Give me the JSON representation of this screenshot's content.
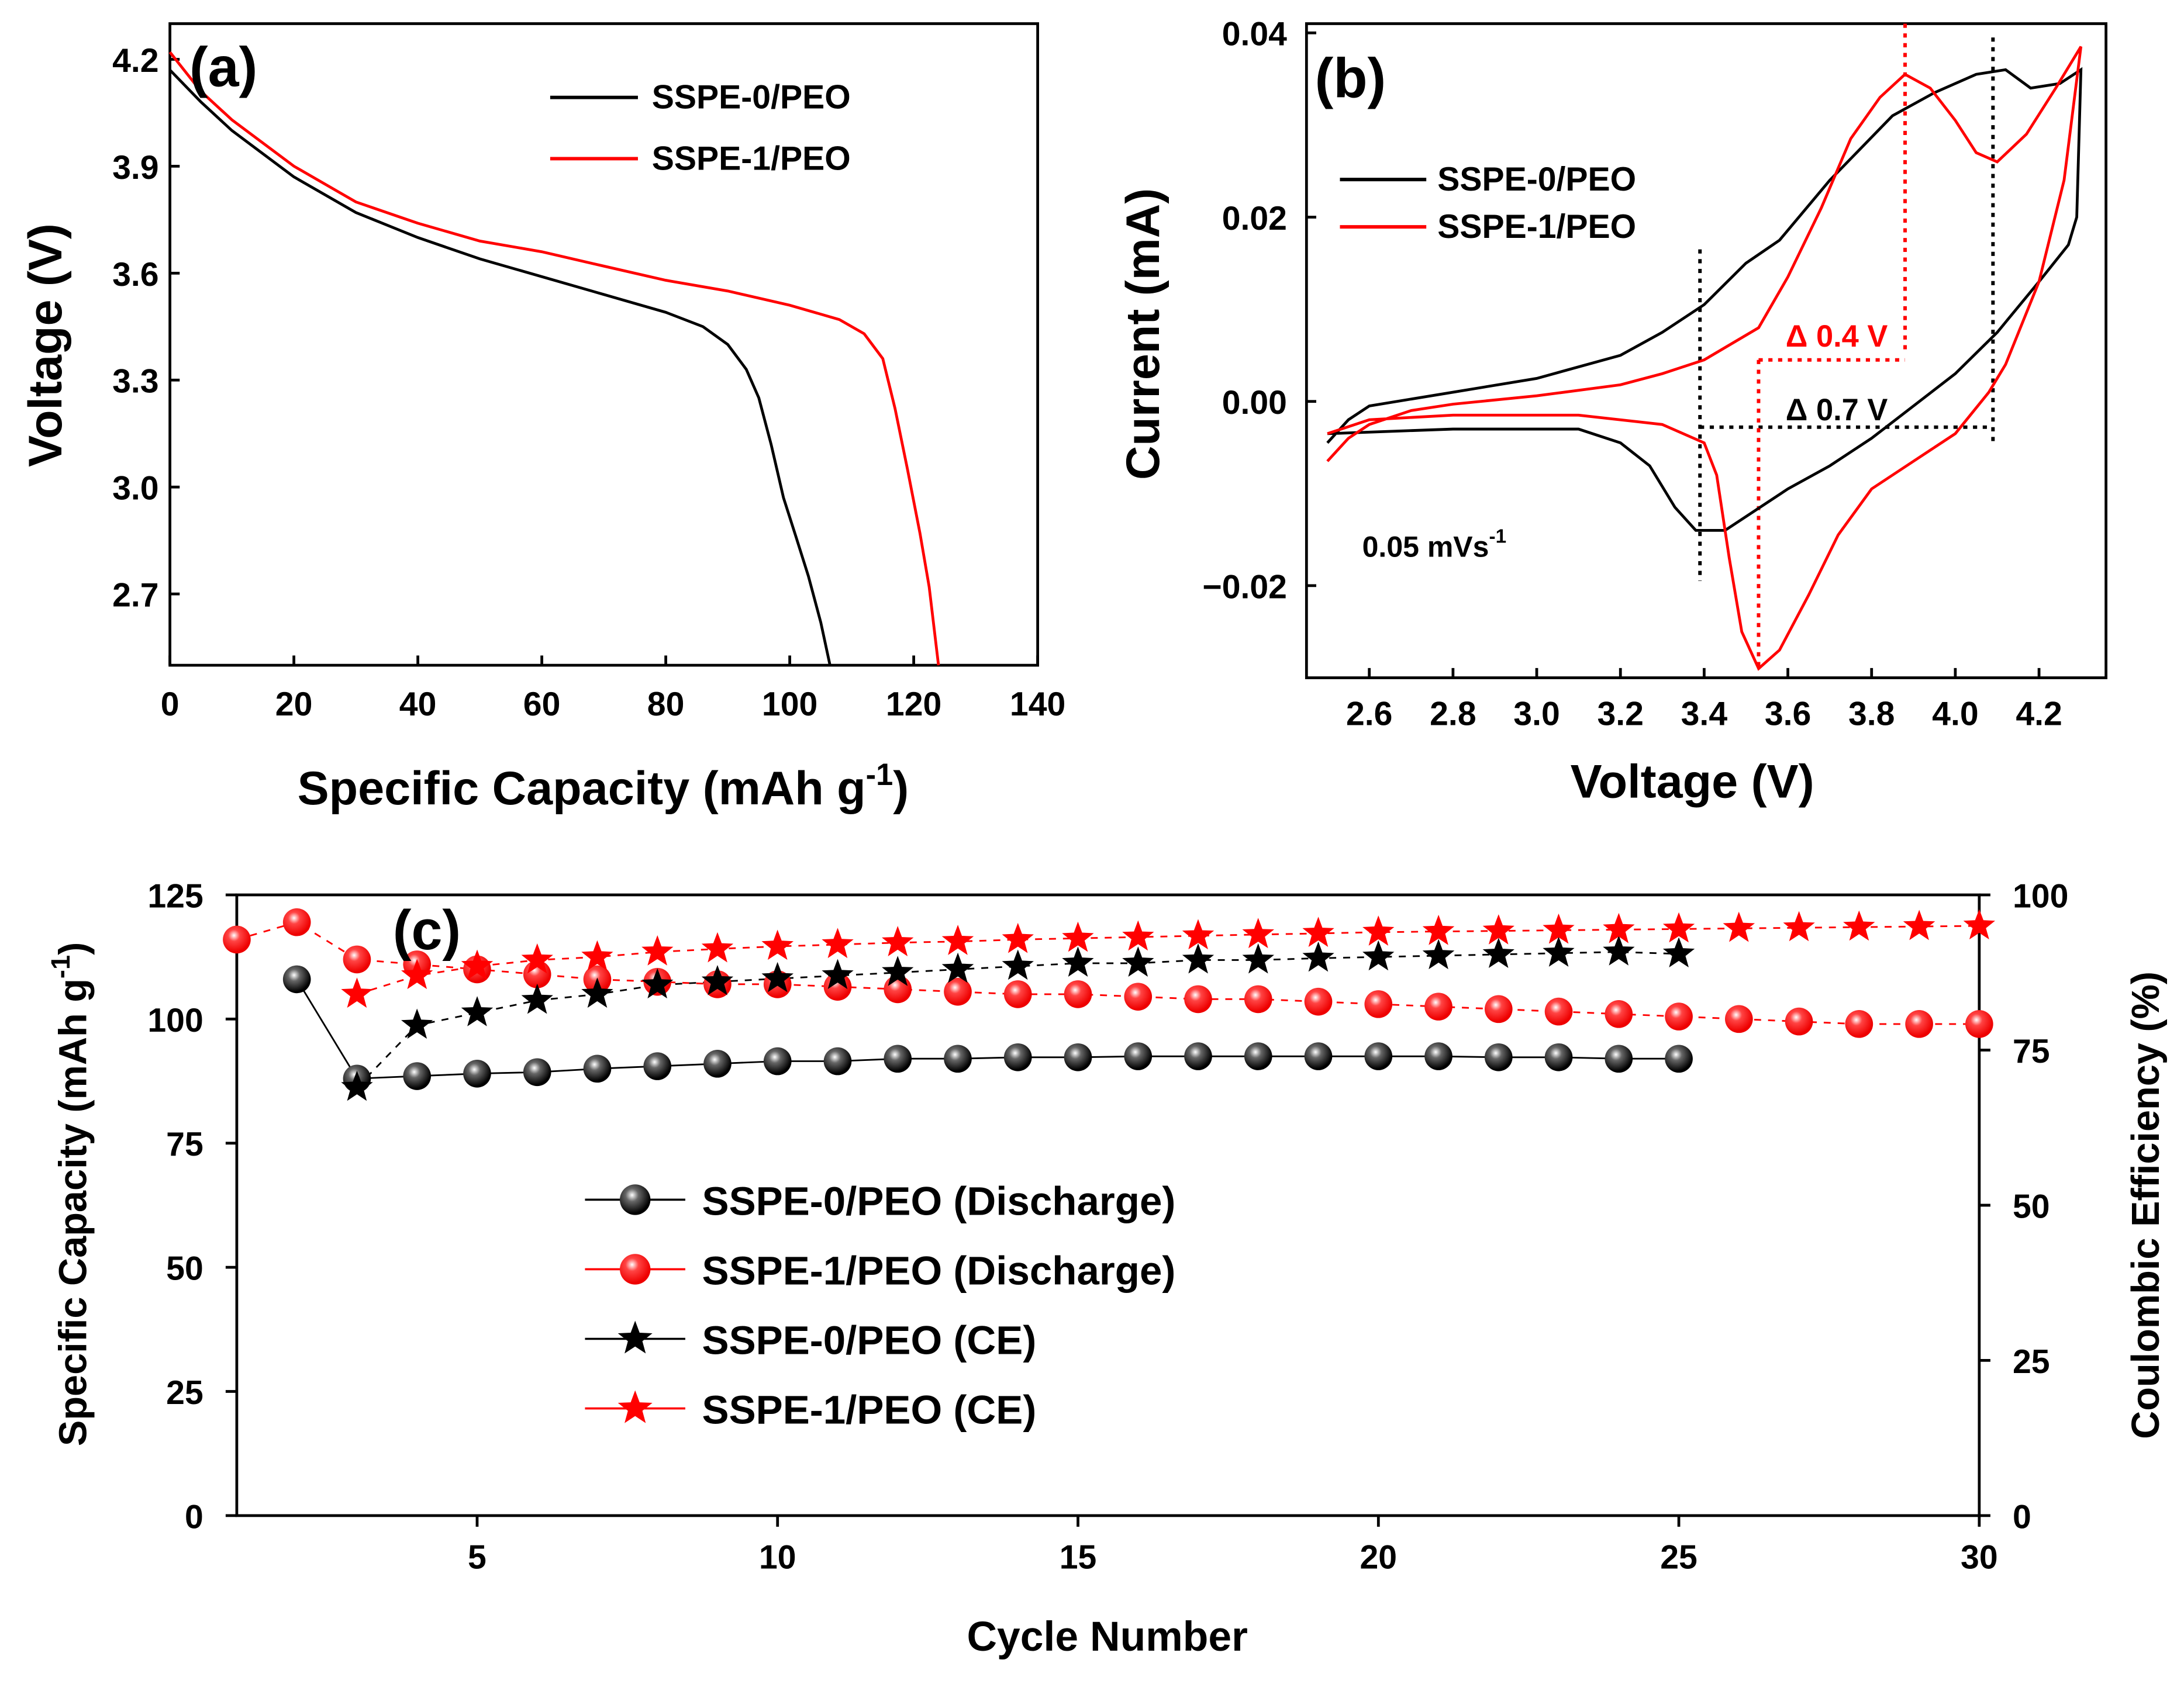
{
  "colors": {
    "black": "#000000",
    "red": "#ff0000"
  },
  "chart_data": [
    {
      "type": "line",
      "panel_label": "(a)",
      "xlabel": "Specific Capacity (mAh g",
      "xlabel_sup": "-1",
      "xlabel_end": ")",
      "ylabel": "Voltage (V)",
      "xlim": [
        0,
        140
      ],
      "ylim": [
        2.5,
        4.3
      ],
      "xticks": [
        0,
        20,
        40,
        60,
        80,
        100,
        120,
        140
      ],
      "yticks": [
        2.7,
        3.0,
        3.3,
        3.6,
        3.9,
        4.2
      ],
      "legend_position": "top-right",
      "series": [
        {
          "name": "SSPE-0/PEO",
          "color": "#000000",
          "points": [
            [
              0,
              4.17
            ],
            [
              5,
              4.08
            ],
            [
              10,
              4.0
            ],
            [
              20,
              3.87
            ],
            [
              30,
              3.77
            ],
            [
              40,
              3.7
            ],
            [
              50,
              3.64
            ],
            [
              60,
              3.59
            ],
            [
              70,
              3.54
            ],
            [
              80,
              3.49
            ],
            [
              86,
              3.45
            ],
            [
              90,
              3.4
            ],
            [
              93,
              3.33
            ],
            [
              95,
              3.25
            ],
            [
              97,
              3.12
            ],
            [
              99,
              2.97
            ],
            [
              101,
              2.86
            ],
            [
              103,
              2.75
            ],
            [
              105,
              2.62
            ],
            [
              106.5,
              2.5
            ]
          ]
        },
        {
          "name": "SSPE-1/PEO",
          "color": "#ff0000",
          "points": [
            [
              0,
              4.22
            ],
            [
              5,
              4.11
            ],
            [
              10,
              4.03
            ],
            [
              20,
              3.9
            ],
            [
              30,
              3.8
            ],
            [
              40,
              3.74
            ],
            [
              50,
              3.69
            ],
            [
              60,
              3.66
            ],
            [
              70,
              3.62
            ],
            [
              80,
              3.58
            ],
            [
              90,
              3.55
            ],
            [
              100,
              3.51
            ],
            [
              108,
              3.47
            ],
            [
              112,
              3.43
            ],
            [
              115,
              3.36
            ],
            [
              117,
              3.22
            ],
            [
              119,
              3.05
            ],
            [
              121,
              2.87
            ],
            [
              122.5,
              2.72
            ],
            [
              124,
              2.5
            ]
          ]
        }
      ]
    },
    {
      "type": "line",
      "panel_label": "(b)",
      "xlabel": "Voltage (V)",
      "ylabel": "Current (mA)",
      "xlim": [
        2.45,
        4.36
      ],
      "ylim": [
        -0.03,
        0.041
      ],
      "xticks": [
        2.6,
        2.8,
        3.0,
        3.2,
        3.4,
        3.6,
        3.8,
        4.0,
        4.2
      ],
      "yticks": [
        -0.02,
        0.0,
        0.02,
        0.04
      ],
      "ytick_labels": [
        "−0.02",
        "0.00",
        "0.02",
        "0.04"
      ],
      "legend_position": "upper-left",
      "annotations": {
        "scan_rate": "0.05 mVs",
        "scan_rate_sup": "-1",
        "delta_red": "Δ 0.4 V",
        "delta_black": "Δ 0.7 V"
      },
      "series": [
        {
          "name": "SSPE-0/PEO",
          "color": "#000000",
          "points": [
            [
              2.5,
              -0.0045
            ],
            [
              2.55,
              -0.002
            ],
            [
              2.6,
              -0.0005
            ],
            [
              2.8,
              0.001
            ],
            [
              3.0,
              0.0025
            ],
            [
              3.2,
              0.005
            ],
            [
              3.3,
              0.0075
            ],
            [
              3.4,
              0.0105
            ],
            [
              3.5,
              0.015
            ],
            [
              3.58,
              0.0175
            ],
            [
              3.7,
              0.024
            ],
            [
              3.85,
              0.031
            ],
            [
              3.95,
              0.0335
            ],
            [
              4.05,
              0.0355
            ],
            [
              4.12,
              0.036
            ],
            [
              4.18,
              0.034
            ],
            [
              4.25,
              0.0345
            ],
            [
              4.3,
              0.036
            ],
            [
              4.29,
              0.02
            ],
            [
              4.27,
              0.017
            ],
            [
              4.2,
              0.013
            ],
            [
              4.1,
              0.0075
            ],
            [
              4.0,
              0.003
            ],
            [
              3.9,
              -0.0005
            ],
            [
              3.8,
              -0.004
            ],
            [
              3.7,
              -0.007
            ],
            [
              3.6,
              -0.0095
            ],
            [
              3.45,
              -0.014
            ],
            [
              3.38,
              -0.014
            ],
            [
              3.33,
              -0.0115
            ],
            [
              3.27,
              -0.007
            ],
            [
              3.2,
              -0.0045
            ],
            [
              3.1,
              -0.003
            ],
            [
              2.8,
              -0.003
            ],
            [
              2.5,
              -0.0035
            ]
          ]
        },
        {
          "name": "SSPE-1/PEO",
          "color": "#ff0000",
          "points": [
            [
              2.5,
              -0.0065
            ],
            [
              2.55,
              -0.004
            ],
            [
              2.6,
              -0.0025
            ],
            [
              2.7,
              -0.001
            ],
            [
              2.8,
              -0.0003
            ],
            [
              3.0,
              0.0006
            ],
            [
              3.2,
              0.0018
            ],
            [
              3.3,
              0.003
            ],
            [
              3.4,
              0.0045
            ],
            [
              3.53,
              0.008
            ],
            [
              3.6,
              0.0135
            ],
            [
              3.68,
              0.021
            ],
            [
              3.75,
              0.0285
            ],
            [
              3.82,
              0.033
            ],
            [
              3.88,
              0.0355
            ],
            [
              3.94,
              0.034
            ],
            [
              4.0,
              0.0305
            ],
            [
              4.05,
              0.027
            ],
            [
              4.1,
              0.026
            ],
            [
              4.17,
              0.029
            ],
            [
              4.24,
              0.034
            ],
            [
              4.3,
              0.0385
            ],
            [
              4.26,
              0.024
            ],
            [
              4.2,
              0.013
            ],
            [
              4.12,
              0.004
            ],
            [
              4.08,
              0.001
            ],
            [
              4.0,
              -0.0035
            ],
            [
              3.9,
              -0.0065
            ],
            [
              3.8,
              -0.0095
            ],
            [
              3.72,
              -0.0145
            ],
            [
              3.65,
              -0.021
            ],
            [
              3.58,
              -0.027
            ],
            [
              3.53,
              -0.029
            ],
            [
              3.49,
              -0.025
            ],
            [
              3.46,
              -0.017
            ],
            [
              3.43,
              -0.008
            ],
            [
              3.4,
              -0.0045
            ],
            [
              3.3,
              -0.0025
            ],
            [
              3.1,
              -0.0015
            ],
            [
              2.8,
              -0.0015
            ],
            [
              2.6,
              -0.002
            ],
            [
              2.5,
              -0.0035
            ]
          ]
        }
      ]
    },
    {
      "type": "scatter",
      "panel_label": "(c)",
      "xlabel": "Cycle Number",
      "ylabel": "Specific Capacity (mAh g",
      "ylabel_sup": "-1",
      "ylabel_end": ")",
      "y2label": "Coulombic Efficiency (%)",
      "xlim": [
        1,
        30
      ],
      "ylim": [
        0,
        125
      ],
      "y2lim": [
        0,
        100
      ],
      "xticks": [
        5,
        10,
        15,
        20,
        25,
        30
      ],
      "yticks": [
        0,
        25,
        50,
        75,
        100,
        125
      ],
      "y2ticks": [
        0,
        25,
        50,
        75,
        100
      ],
      "legend_position": "center-left",
      "series": [
        {
          "name": "SSPE-0/PEO (Discharge)",
          "axis": "left",
          "marker": "sphere",
          "color": "#000000",
          "x": [
            2,
            3,
            4,
            5,
            6,
            7,
            8,
            9,
            10,
            11,
            12,
            13,
            14,
            15,
            16,
            17,
            18,
            19,
            20,
            21,
            22,
            23,
            24,
            25
          ],
          "values": [
            108,
            88,
            88.5,
            89,
            89.3,
            90,
            90.5,
            91,
            91.5,
            91.5,
            92,
            92,
            92.3,
            92.3,
            92.5,
            92.5,
            92.5,
            92.5,
            92.5,
            92.5,
            92.3,
            92.3,
            92,
            92
          ]
        },
        {
          "name": "SSPE-1/PEO (Discharge)",
          "axis": "left",
          "marker": "sphere",
          "color": "#ff0000",
          "x": [
            1,
            2,
            3,
            4,
            5,
            6,
            7,
            8,
            9,
            10,
            11,
            12,
            13,
            14,
            15,
            16,
            17,
            18,
            19,
            20,
            21,
            22,
            23,
            24,
            25,
            26,
            27,
            28,
            29,
            30
          ],
          "values": [
            116,
            119.5,
            112,
            111,
            110,
            109,
            108,
            107.5,
            107,
            107,
            106.5,
            106,
            105.5,
            105,
            105,
            104.5,
            104,
            104,
            103.5,
            103,
            102.5,
            102,
            101.5,
            101,
            100.5,
            100,
            99.5,
            99,
            99,
            99
          ]
        },
        {
          "name": "SSPE-0/PEO (CE)",
          "axis": "right",
          "marker": "star",
          "color": "#000000",
          "x": [
            3,
            4,
            5,
            6,
            7,
            8,
            9,
            10,
            11,
            12,
            13,
            14,
            15,
            16,
            17,
            18,
            19,
            20,
            21,
            22,
            23,
            24,
            25
          ],
          "values": [
            69,
            79,
            81,
            83,
            84,
            85.5,
            86,
            86.5,
            87,
            87.5,
            88,
            88.5,
            89,
            89,
            89.5,
            89.5,
            89.8,
            90,
            90.2,
            90.4,
            90.6,
            90.8,
            90.5
          ]
        },
        {
          "name": "SSPE-1/PEO (CE)",
          "axis": "right",
          "marker": "star",
          "color": "#ff0000",
          "x": [
            3,
            4,
            5,
            6,
            7,
            8,
            9,
            10,
            11,
            12,
            13,
            14,
            15,
            16,
            17,
            18,
            19,
            20,
            21,
            22,
            23,
            24,
            25,
            26,
            27,
            28,
            29,
            30
          ],
          "values": [
            84,
            87,
            88.5,
            89.5,
            90,
            90.8,
            91.3,
            91.7,
            92,
            92.3,
            92.5,
            92.8,
            93,
            93.2,
            93.4,
            93.6,
            93.8,
            94,
            94.1,
            94.2,
            94.3,
            94.4,
            94.5,
            94.6,
            94.7,
            94.8,
            94.9,
            95
          ]
        }
      ]
    }
  ]
}
